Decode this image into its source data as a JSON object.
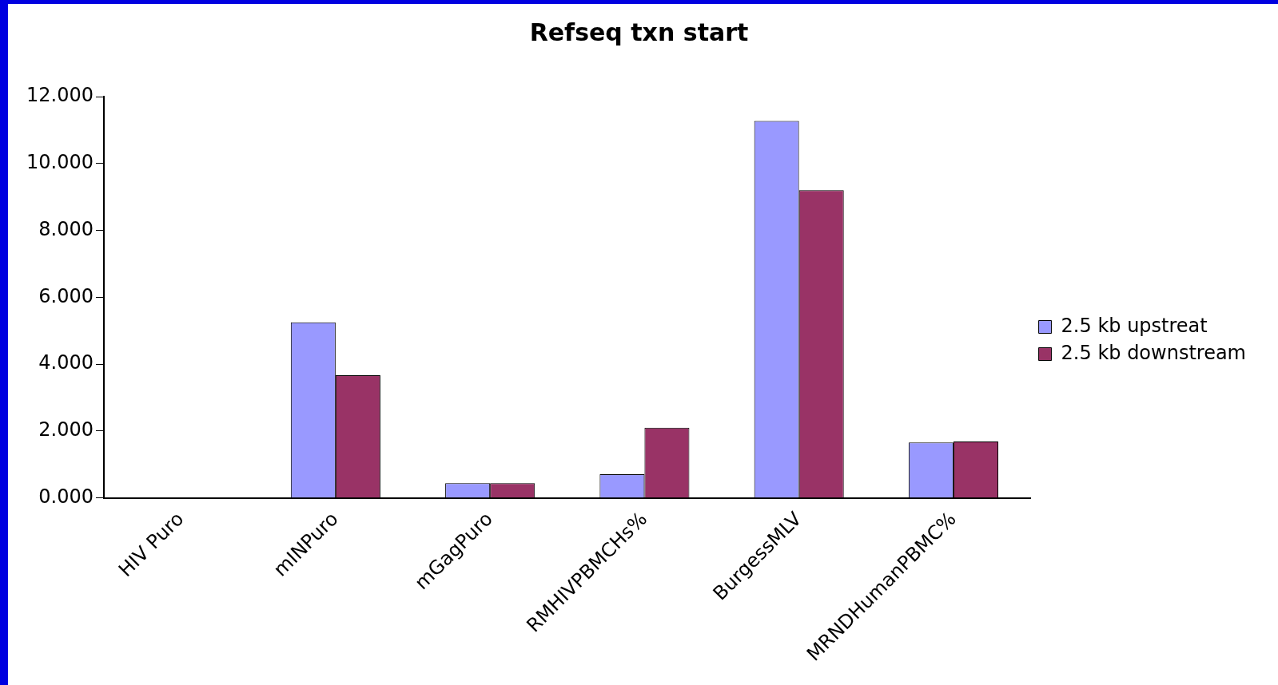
{
  "chart_data": {
    "type": "bar",
    "title": "Refseq txn start",
    "categories": [
      "HIV Puro",
      "mINPuro",
      "mGagPuro",
      "RMHIVPBMCHs%",
      "BurgessMLV",
      "MRNDHumanPBMC%"
    ],
    "series": [
      {
        "name": "2.5 kb upstreat",
        "color": "#9999ff",
        "values": [
          0,
          5.25,
          0.44,
          0.71,
          11.27,
          1.66
        ]
      },
      {
        "name": "2.5 kb downstream",
        "color": "#993366",
        "values": [
          0,
          3.67,
          0.44,
          2.1,
          9.2,
          1.69
        ]
      }
    ],
    "ylim": [
      0,
      12
    ],
    "yticks": [
      {
        "value": 0,
        "label": "0.000"
      },
      {
        "value": 2,
        "label": "2.000"
      },
      {
        "value": 4,
        "label": "4.000"
      },
      {
        "value": 6,
        "label": "6.000"
      },
      {
        "value": 8,
        "label": "8.000"
      },
      {
        "value": 10,
        "label": "10.000"
      },
      {
        "value": 12,
        "label": "12.000"
      }
    ],
    "grid": false,
    "legend": "right"
  }
}
